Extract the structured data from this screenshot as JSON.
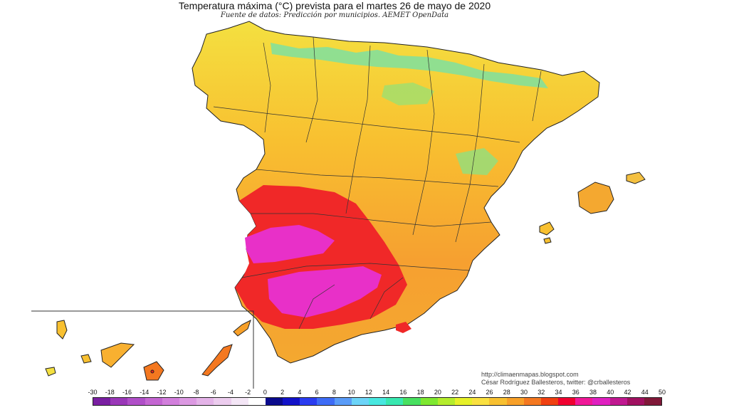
{
  "title": "Temperatura máxima (°C) prevista para el martes 26 de mayo de 2020",
  "subtitle": "Fuente de datos: Predicción por municipios. AEMET OpenData",
  "credits": {
    "line1": "http://climaenmapas.blogspot.com",
    "line2": "César Rodríguez Ballesteros, twitter: @crballesteros"
  },
  "legend": {
    "labels": [
      "-30",
      "-18",
      "-16",
      "-14",
      "-12",
      "-10",
      "-8",
      "-6",
      "-4",
      "-2",
      "0",
      "2",
      "4",
      "6",
      "8",
      "10",
      "12",
      "14",
      "16",
      "18",
      "20",
      "22",
      "24",
      "26",
      "28",
      "30",
      "32",
      "34",
      "36",
      "38",
      "40",
      "42",
      "44",
      "50"
    ],
    "colors": [
      "#7a1fa2",
      "#9a37b8",
      "#b04fc8",
      "#c466d2",
      "#d27fdc",
      "#dc99e2",
      "#e4b3e8",
      "#ecccee",
      "#f4e6f6",
      "#ffffff",
      "#0a0a8c",
      "#1212c8",
      "#2a3cf0",
      "#3e6cf6",
      "#5a9cf8",
      "#6cd4f8",
      "#48e8e0",
      "#38e8b0",
      "#48e060",
      "#7ee830",
      "#b4ec2c",
      "#e6f028",
      "#fae040",
      "#f8c030",
      "#f8a028",
      "#f47820",
      "#f04010",
      "#f00030",
      "#f01898",
      "#e020c0",
      "#c01890",
      "#a01060",
      "#801838"
    ]
  },
  "map": {
    "regions": [
      "peninsula",
      "balearic-islands",
      "canary-islands"
    ],
    "colors": {
      "background": "#ffffff",
      "cool_north": "#48d890",
      "warm_center": "#f6a030",
      "coast_yellow": "#f4e040",
      "hot_red": "#f02020",
      "extreme_magenta": "#e830c8"
    }
  }
}
